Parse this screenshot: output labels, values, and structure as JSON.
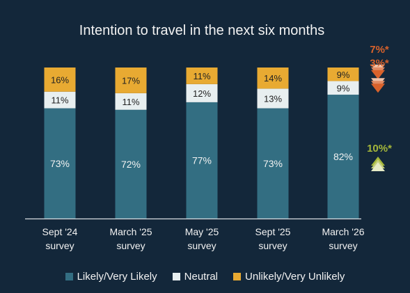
{
  "chart_data": {
    "type": "bar",
    "stacked": true,
    "title": "Intention to travel in the next six months",
    "categories": [
      [
        "Sept '24",
        "survey"
      ],
      [
        "March '25",
        "survey"
      ],
      [
        "May '25",
        "survey"
      ],
      [
        "Sept '25",
        "survey"
      ],
      [
        "March '26",
        "survey"
      ]
    ],
    "series": [
      {
        "name": "Likely/Very Likely",
        "color": "#336e82",
        "values": [
          73,
          72,
          77,
          73,
          82
        ],
        "labels": [
          "73%",
          "72%",
          "77%",
          "73%",
          "82%"
        ]
      },
      {
        "name": "Neutral",
        "color": "#e8eff0",
        "values": [
          11,
          11,
          12,
          13,
          9
        ],
        "labels": [
          "11%",
          "11%",
          "12%",
          "13%",
          "9%"
        ]
      },
      {
        "name": "Unlikely/Very Unlikely",
        "color": "#e8aa32",
        "values": [
          16,
          17,
          11,
          14,
          9
        ],
        "labels": [
          "16%",
          "17%",
          "11%",
          "14%",
          "9%"
        ]
      }
    ],
    "ylim": [
      0,
      100
    ],
    "grid": false,
    "legend_position": "bottom",
    "annotations": [
      {
        "series": "Unlikely/Very Unlikely",
        "text": "7%*",
        "direction": "down",
        "color": "#d9622b"
      },
      {
        "series": "Neutral",
        "text": "3%*",
        "direction": "down",
        "color": "#d9622b"
      },
      {
        "series": "Likely/Very Likely",
        "text": "10%*",
        "direction": "up",
        "color": "#a4b63a"
      }
    ]
  }
}
